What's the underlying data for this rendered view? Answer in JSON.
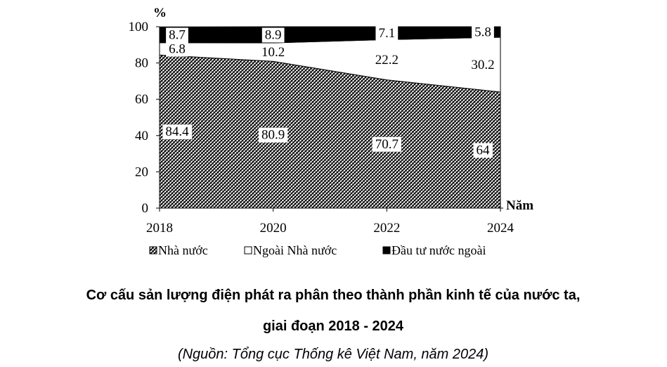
{
  "chart_data": {
    "type": "stacked_area",
    "title": [
      "Cơ cấu sản lượng điện phát ra phân theo thành phần kinh tế của nước ta,",
      "giai đoạn 2018 - 2024"
    ],
    "source": "(Nguồn: Tổng cục Thống kê Việt Nam, năm 2024)",
    "y_label": "%",
    "x_label": "Năm",
    "categories": [
      "2018",
      "2020",
      "2022",
      "2024"
    ],
    "series": [
      {
        "name": "Nhà nước",
        "color": "hatch",
        "values": [
          84.4,
          80.9,
          70.7,
          64
        ]
      },
      {
        "name": "Ngoài Nhà nước",
        "color": "#ffffff",
        "values": [
          6.8,
          10.2,
          22.2,
          30.2
        ]
      },
      {
        "name": "Đầu tư nước ngoài",
        "color": "#000000",
        "values": [
          8.7,
          8.9,
          7.1,
          5.8
        ]
      }
    ],
    "ylim": [
      0,
      100
    ],
    "yticks": [
      0,
      20,
      40,
      60,
      80,
      100
    ]
  }
}
